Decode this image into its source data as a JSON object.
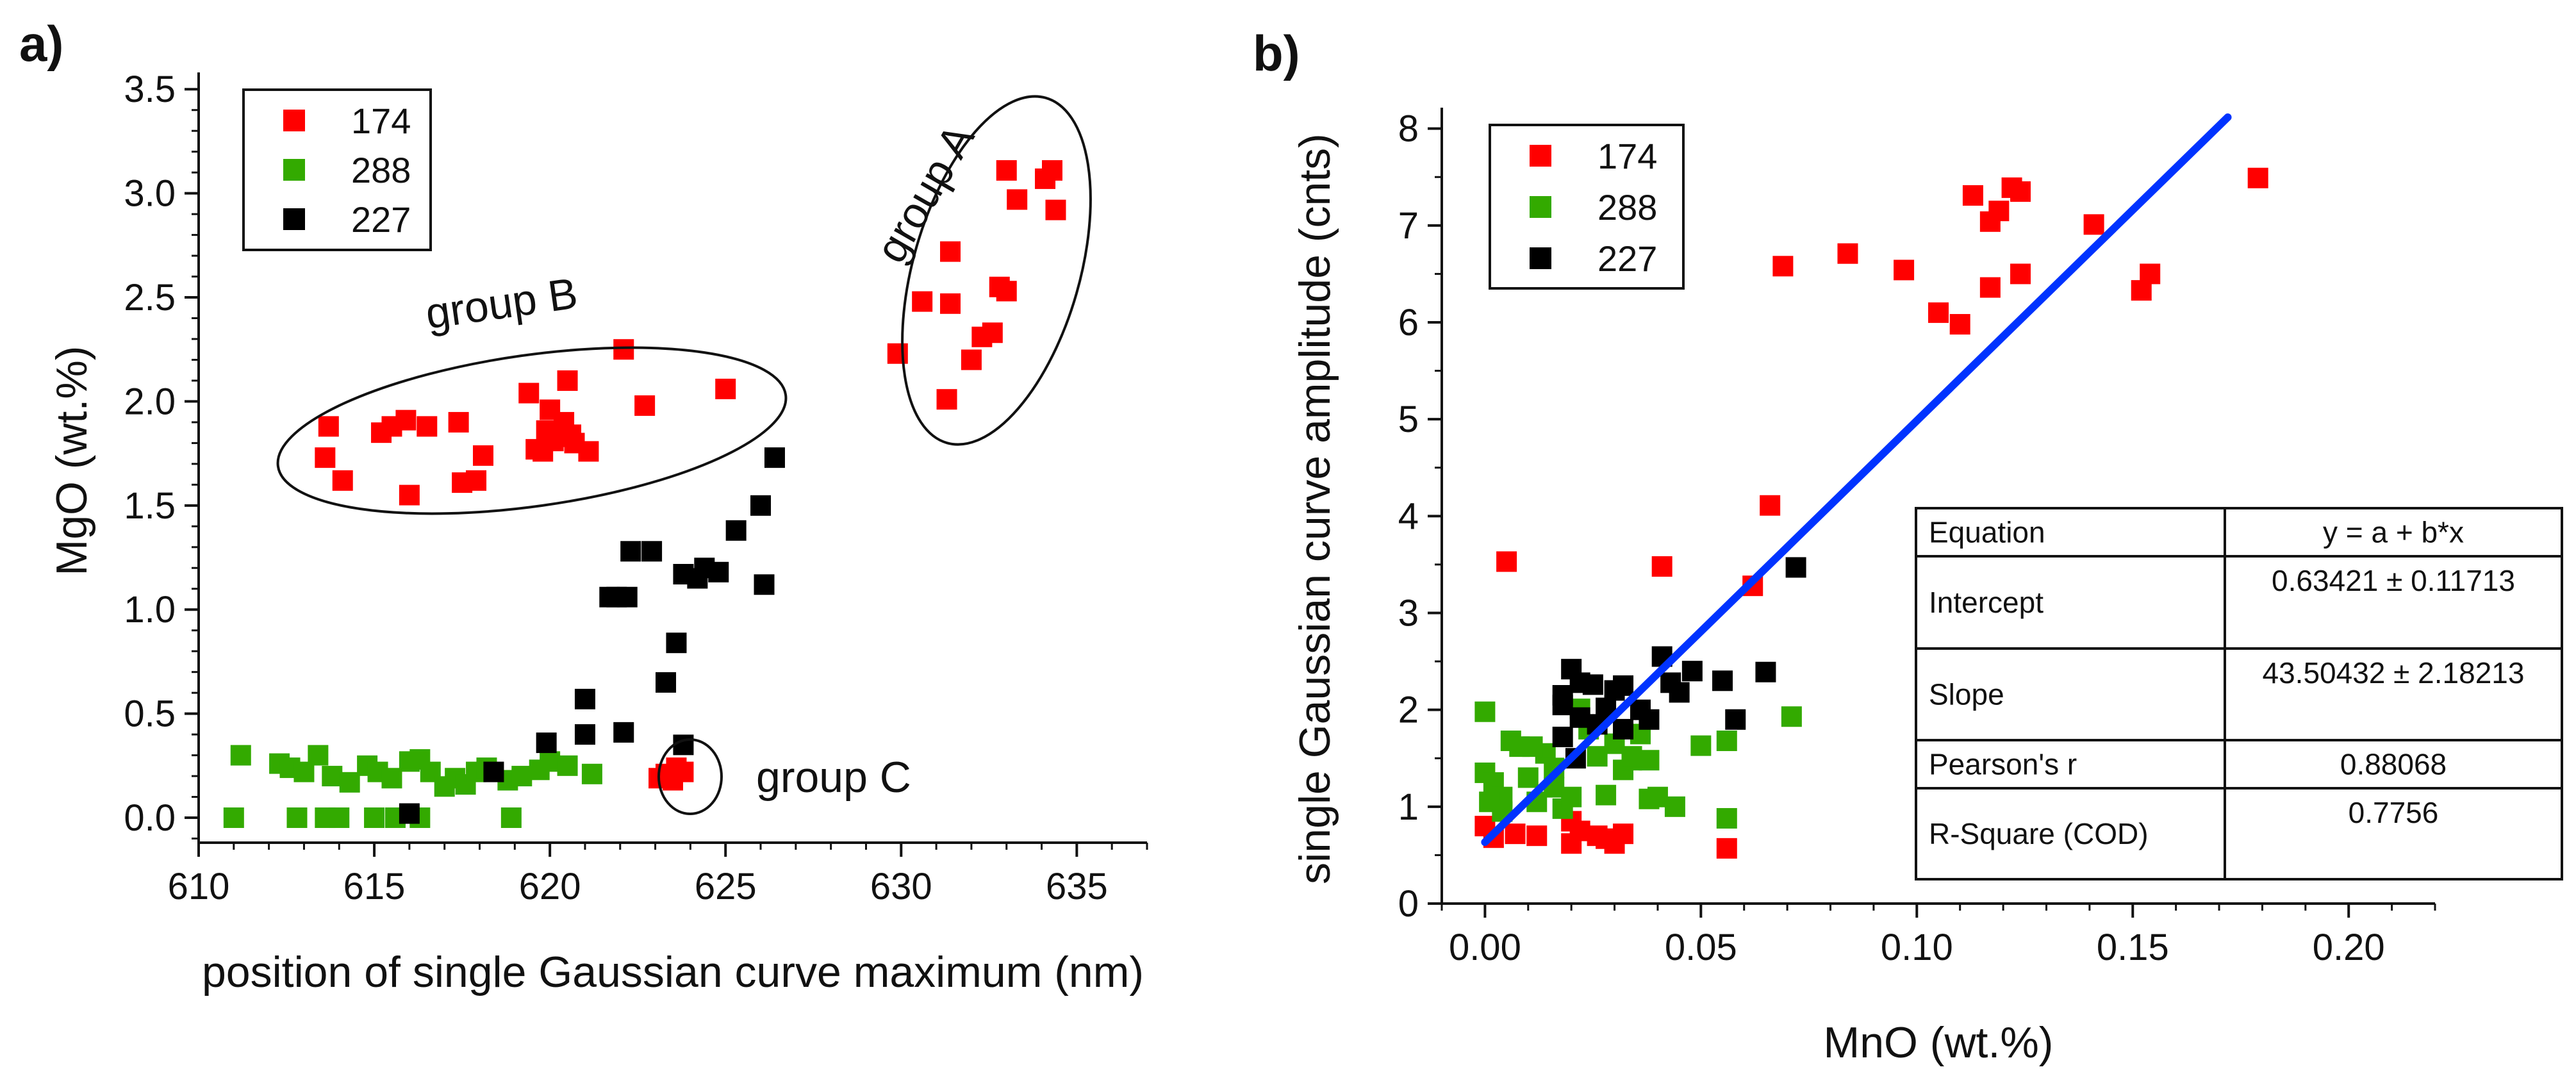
{
  "chart_data": [
    {
      "panel": "a)",
      "type": "scatter",
      "xlabel": "position of single Gaussian curve maximum (nm)",
      "ylabel": "MgO (wt.%)",
      "xlim": [
        610,
        637
      ],
      "ylim": [
        -0.12,
        3.55
      ],
      "xticks": [
        610,
        615,
        620,
        625,
        630,
        635
      ],
      "xtick_labels": [
        "610",
        "615",
        "620",
        "625",
        "630",
        "635"
      ],
      "yticks": [
        0,
        0.5,
        1,
        1.5,
        2,
        2.5,
        3,
        3.5
      ],
      "ytick_labels": [
        "0.0",
        "0.5",
        "1.0",
        "1.5",
        "2.0",
        "2.5",
        "3.0",
        "3.5"
      ],
      "legend": [
        "174",
        "288",
        "227"
      ],
      "series": [
        {
          "name": "174",
          "color": "#ff0000",
          "points": [
            [
              633.0,
              3.11
            ],
            [
              634.3,
              3.11
            ],
            [
              634.1,
              3.07
            ],
            [
              634.4,
              2.92
            ],
            [
              633.3,
              2.97
            ],
            [
              631.4,
              2.72
            ],
            [
              632.8,
              2.55
            ],
            [
              633.0,
              2.53
            ],
            [
              631.4,
              2.47
            ],
            [
              630.6,
              2.48
            ],
            [
              632.3,
              2.31
            ],
            [
              632.6,
              2.33
            ],
            [
              632.0,
              2.2
            ],
            [
              629.9,
              2.23
            ],
            [
              631.3,
              2.01
            ],
            [
              622.1,
              2.25
            ],
            [
              625.0,
              2.06
            ],
            [
              620.5,
              2.1
            ],
            [
              619.4,
              2.04
            ],
            [
              622.7,
              1.98
            ],
            [
              620.0,
              1.96
            ],
            [
              620.4,
              1.9
            ],
            [
              613.7,
              1.88
            ],
            [
              615.5,
              1.88
            ],
            [
              615.9,
              1.91
            ],
            [
              616.5,
              1.88
            ],
            [
              617.4,
              1.9
            ],
            [
              615.2,
              1.85
            ],
            [
              619.9,
              1.86
            ],
            [
              620.6,
              1.84
            ],
            [
              620.1,
              1.81
            ],
            [
              619.8,
              1.76
            ],
            [
              620.3,
              1.83
            ],
            [
              620.7,
              1.8
            ],
            [
              619.6,
              1.77
            ],
            [
              621.1,
              1.76
            ],
            [
              618.1,
              1.74
            ],
            [
              613.6,
              1.73
            ],
            [
              617.5,
              1.61
            ],
            [
              617.9,
              1.62
            ],
            [
              614.1,
              1.62
            ],
            [
              616.0,
              1.55
            ],
            [
              623.3,
              0.21
            ],
            [
              623.6,
              0.24
            ],
            [
              623.8,
              0.22
            ],
            [
              623.1,
              0.19
            ],
            [
              623.5,
              0.18
            ]
          ]
        },
        {
          "name": "288",
          "color": "#33aa00",
          "points": [
            [
              611.2,
              0.3
            ],
            [
              612.3,
              0.26
            ],
            [
              612.6,
              0.24
            ],
            [
              613.4,
              0.3
            ],
            [
              613.0,
              0.22
            ],
            [
              613.8,
              0.2
            ],
            [
              614.3,
              0.17
            ],
            [
              614.8,
              0.25
            ],
            [
              615.1,
              0.22
            ],
            [
              615.5,
              0.19
            ],
            [
              616.0,
              0.27
            ],
            [
              616.3,
              0.28
            ],
            [
              616.6,
              0.22
            ],
            [
              617.0,
              0.15
            ],
            [
              617.3,
              0.19
            ],
            [
              617.6,
              0.16
            ],
            [
              617.9,
              0.22
            ],
            [
              618.2,
              0.24
            ],
            [
              618.8,
              0.18
            ],
            [
              619.2,
              0.2
            ],
            [
              619.7,
              0.23
            ],
            [
              620.0,
              0.27
            ],
            [
              620.5,
              0.25
            ],
            [
              621.2,
              0.21
            ],
            [
              612.8,
              0.0
            ],
            [
              613.6,
              0.0
            ],
            [
              614.0,
              0.0
            ],
            [
              615.0,
              0.0
            ],
            [
              615.6,
              0.0
            ],
            [
              616.3,
              0.0
            ],
            [
              611.0,
              0.0
            ],
            [
              618.9,
              0.0
            ]
          ]
        },
        {
          "name": "227",
          "color": "#000000",
          "points": [
            [
              626.4,
              1.73
            ],
            [
              626.0,
              1.5
            ],
            [
              625.3,
              1.38
            ],
            [
              624.4,
              1.2
            ],
            [
              624.8,
              1.18
            ],
            [
              624.2,
              1.15
            ],
            [
              623.8,
              1.17
            ],
            [
              622.9,
              1.28
            ],
            [
              622.3,
              1.28
            ],
            [
              626.1,
              1.12
            ],
            [
              621.9,
              1.06
            ],
            [
              621.7,
              1.06
            ],
            [
              622.2,
              1.06
            ],
            [
              623.6,
              0.84
            ],
            [
              623.3,
              0.65
            ],
            [
              621.0,
              0.57
            ],
            [
              621.0,
              0.4
            ],
            [
              622.1,
              0.41
            ],
            [
              619.9,
              0.36
            ],
            [
              623.8,
              0.35
            ],
            [
              618.4,
              0.22
            ],
            [
              616.0,
              0.02
            ]
          ]
        }
      ],
      "annotations": [
        {
          "text": "group A",
          "rotation": -60
        },
        {
          "text": "group B",
          "rotation": -8
        },
        {
          "text": "group C",
          "rotation": 0
        }
      ]
    },
    {
      "panel": "b)",
      "type": "scatter",
      "xlabel": "MnO (wt.%)",
      "ylabel": "single Gaussian curve amplitude (cnts)",
      "xlim": [
        -0.01,
        0.22
      ],
      "ylim": [
        0,
        8.15
      ],
      "xticks": [
        0,
        0.05,
        0.1,
        0.15,
        0.2
      ],
      "xtick_labels": [
        "0.00",
        "0.05",
        "0.10",
        "0.15",
        "0.20"
      ],
      "yticks": [
        0,
        1,
        2,
        3,
        4,
        5,
        6,
        7,
        8
      ],
      "ytick_labels": [
        "0",
        "1",
        "2",
        "3",
        "4",
        "5",
        "6",
        "7",
        "8"
      ],
      "legend": [
        "174",
        "288",
        "227"
      ],
      "fit_line": {
        "intercept": 0.63421,
        "slope": 43.50432,
        "x_range": [
          0,
          0.172
        ],
        "color": "#0033ff"
      },
      "fit_table": [
        [
          "Equation",
          "y = a + b*x"
        ],
        [
          "Intercept",
          "0.63421 ± 0.11713"
        ],
        [
          "Slope",
          "43.50432 ± 2.18213"
        ],
        [
          "Pearson's r",
          "0.88068"
        ],
        [
          "R-Square (COD)",
          "0.7756"
        ]
      ],
      "series": [
        {
          "name": "174",
          "color": "#ff0000",
          "points": [
            [
              0.179,
              7.49
            ],
            [
              0.122,
              7.39
            ],
            [
              0.124,
              7.35
            ],
            [
              0.113,
              7.31
            ],
            [
              0.119,
              7.15
            ],
            [
              0.117,
              7.04
            ],
            [
              0.141,
              7.01
            ],
            [
              0.084,
              6.71
            ],
            [
              0.069,
              6.58
            ],
            [
              0.097,
              6.54
            ],
            [
              0.124,
              6.5
            ],
            [
              0.154,
              6.5
            ],
            [
              0.117,
              6.36
            ],
            [
              0.152,
              6.33
            ],
            [
              0.105,
              6.1
            ],
            [
              0.11,
              5.98
            ],
            [
              0.066,
              4.11
            ],
            [
              0.005,
              3.53
            ],
            [
              0.041,
              3.48
            ],
            [
              0.062,
              3.28
            ],
            [
              0.0,
              0.8
            ],
            [
              0.002,
              0.68
            ],
            [
              0.007,
              0.72
            ],
            [
              0.012,
              0.7
            ],
            [
              0.02,
              0.85
            ],
            [
              0.022,
              0.75
            ],
            [
              0.026,
              0.7
            ],
            [
              0.03,
              0.62
            ],
            [
              0.032,
              0.72
            ],
            [
              0.02,
              0.62
            ],
            [
              0.056,
              0.57
            ],
            [
              0.028,
              0.67
            ]
          ]
        },
        {
          "name": "288",
          "color": "#33aa00",
          "points": [
            [
              0.0,
              1.98
            ],
            [
              0.0,
              1.35
            ],
            [
              0.002,
              1.25
            ],
            [
              0.004,
              1.1
            ],
            [
              0.006,
              1.68
            ],
            [
              0.008,
              1.62
            ],
            [
              0.01,
              1.3
            ],
            [
              0.012,
              1.05
            ],
            [
              0.014,
              1.55
            ],
            [
              0.016,
              1.2
            ],
            [
              0.018,
              0.98
            ],
            [
              0.02,
              1.1
            ],
            [
              0.022,
              2.01
            ],
            [
              0.024,
              1.8
            ],
            [
              0.026,
              1.52
            ],
            [
              0.028,
              1.12
            ],
            [
              0.03,
              1.65
            ],
            [
              0.032,
              1.38
            ],
            [
              0.034,
              1.48
            ],
            [
              0.036,
              1.75
            ],
            [
              0.038,
              1.48
            ],
            [
              0.04,
              1.1
            ],
            [
              0.044,
              1.0
            ],
            [
              0.05,
              1.63
            ],
            [
              0.056,
              1.68
            ],
            [
              0.056,
              0.88
            ],
            [
              0.071,
              1.93
            ],
            [
              0.001,
              1.05
            ],
            [
              0.011,
              1.62
            ],
            [
              0.004,
              0.95
            ],
            [
              0.016,
              1.4
            ],
            [
              0.038,
              1.08
            ],
            [
              0.034,
              1.52
            ]
          ]
        },
        {
          "name": "227",
          "color": "#000000",
          "points": [
            [
              0.072,
              3.47
            ],
            [
              0.041,
              2.55
            ],
            [
              0.065,
              2.39
            ],
            [
              0.048,
              2.4
            ],
            [
              0.055,
              2.3
            ],
            [
              0.043,
              2.28
            ],
            [
              0.045,
              2.18
            ],
            [
              0.02,
              2.42
            ],
            [
              0.022,
              2.28
            ],
            [
              0.025,
              2.26
            ],
            [
              0.03,
              2.2
            ],
            [
              0.032,
              2.25
            ],
            [
              0.018,
              2.15
            ],
            [
              0.018,
              2.05
            ],
            [
              0.028,
              2.02
            ],
            [
              0.036,
              2.0
            ],
            [
              0.058,
              1.9
            ],
            [
              0.022,
              1.92
            ],
            [
              0.038,
              1.9
            ],
            [
              0.032,
              1.8
            ],
            [
              0.018,
              1.72
            ],
            [
              0.026,
              1.85
            ],
            [
              0.021,
              1.5
            ]
          ]
        }
      ]
    }
  ]
}
